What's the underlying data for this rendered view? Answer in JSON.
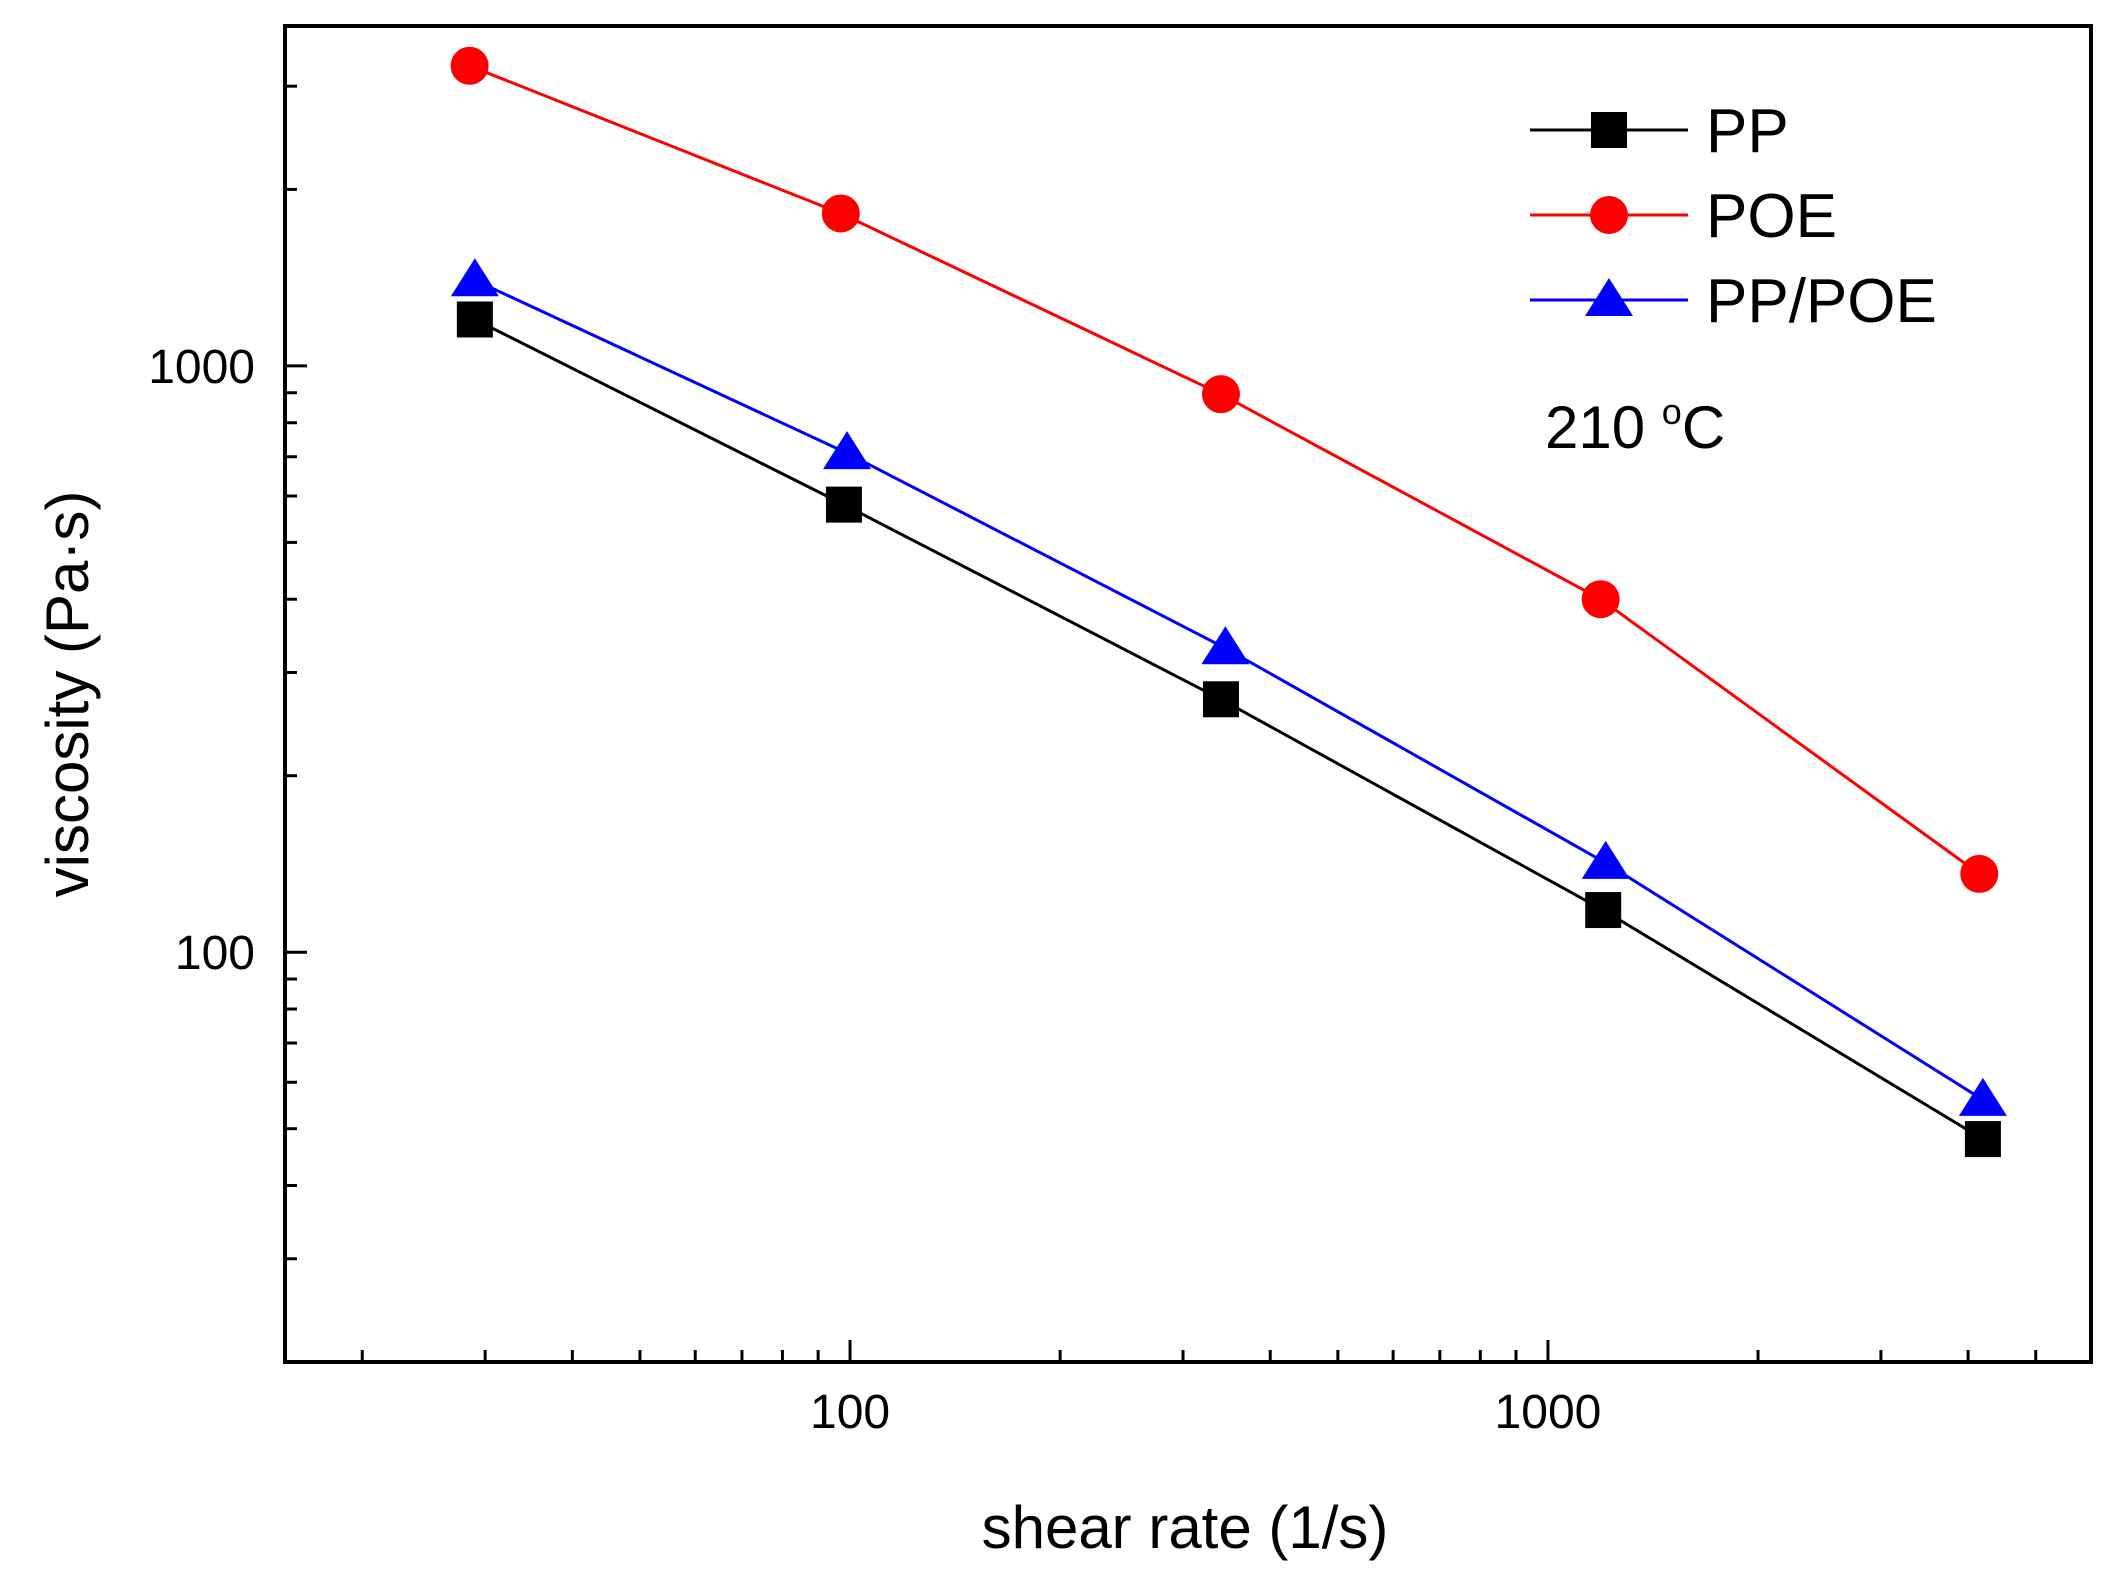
{
  "chart_data": {
    "type": "line",
    "title": "",
    "xlabel": "shear rate (1/s)",
    "ylabel": "viscosity (Pa·s)",
    "xscale": "log",
    "yscale": "log",
    "xlim": [
      15.5,
      6000
    ],
    "ylim": [
      20,
      3800
    ],
    "xticks": [
      100,
      1000
    ],
    "xtick_labels": [
      "100",
      "1000"
    ],
    "yticks": [
      100,
      1000
    ],
    "ytick_labels": [
      "100",
      "1000"
    ],
    "grid": false,
    "legend_position": "top-right",
    "annotation": {
      "base": "210 ",
      "sup": "o",
      "unit": "C"
    },
    "series": [
      {
        "name": "PP",
        "color": "#000000",
        "marker": "square",
        "x": [
          29,
          98,
          340,
          1200,
          4200
        ],
        "y": [
          1200,
          580,
          270,
          118,
          48
        ]
      },
      {
        "name": "POE",
        "color": "#ff0000",
        "marker": "circle",
        "x": [
          28.5,
          97,
          340,
          1190,
          4150
        ],
        "y": [
          3250,
          1820,
          895,
          400,
          136
        ]
      },
      {
        "name": "PP/POE",
        "color": "#0000ff",
        "marker": "triangle",
        "x": [
          29,
          99,
          345,
          1210,
          4200
        ],
        "y": [
          1400,
          710,
          330,
          142,
          56
        ]
      }
    ]
  }
}
